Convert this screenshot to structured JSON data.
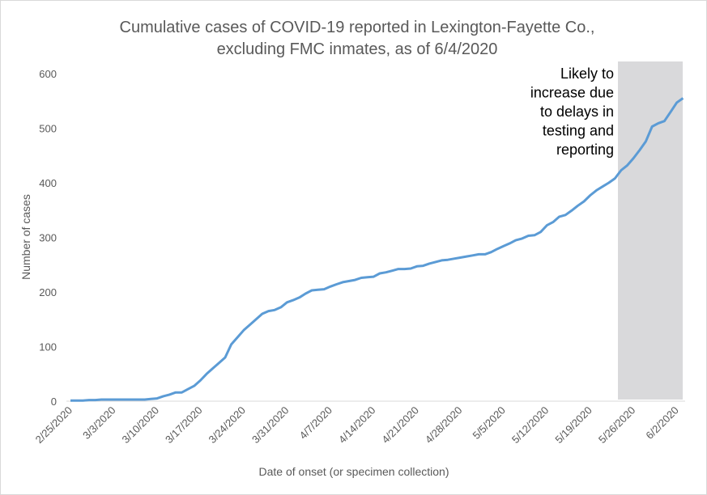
{
  "chart_data": {
    "type": "line",
    "title": [
      "Cumulative cases of COVID-19 reported in Lexington-Fayette Co.,",
      "excluding FMC inmates, as of 6/4/2020"
    ],
    "x_label": "Date of onset (or specimen collection)",
    "y_label": "Number of cases",
    "annotation": [
      "Likely to",
      "increase due",
      "to delays in",
      "testing and",
      "reporting"
    ],
    "color": "#5b9bd5",
    "categories": [
      "2/25/2020",
      null,
      null,
      null,
      null,
      null,
      null,
      "3/3/2020",
      null,
      null,
      null,
      null,
      null,
      null,
      "3/10/2020",
      null,
      null,
      null,
      null,
      null,
      null,
      "3/17/2020",
      null,
      null,
      null,
      null,
      null,
      null,
      "3/24/2020",
      null,
      null,
      null,
      null,
      null,
      null,
      "3/31/2020",
      null,
      null,
      null,
      null,
      null,
      null,
      "4/7/2020",
      null,
      null,
      null,
      null,
      null,
      null,
      "4/14/2020",
      null,
      null,
      null,
      null,
      null,
      null,
      "4/21/2020",
      null,
      null,
      null,
      null,
      null,
      null,
      "4/28/2020",
      null,
      null,
      null,
      null,
      null,
      null,
      "5/5/2020",
      null,
      null,
      null,
      null,
      null,
      null,
      "5/12/2020",
      null,
      null,
      null,
      null,
      null,
      null,
      "5/19/2020",
      null,
      null,
      null,
      null,
      null,
      null,
      "5/26/2020",
      null,
      null,
      null,
      null,
      null,
      null,
      "6/2/2020",
      null
    ],
    "values": [
      1,
      1,
      1,
      2,
      2,
      3,
      3,
      3,
      3,
      3,
      3,
      3,
      3,
      4,
      5,
      9,
      12,
      16,
      16,
      22,
      28,
      38,
      50,
      60,
      70,
      80,
      104,
      117,
      130,
      140,
      150,
      160,
      165,
      167,
      172,
      181,
      185,
      190,
      197,
      203,
      204,
      205,
      210,
      214,
      218,
      220,
      222,
      226,
      227,
      228,
      234,
      236,
      239,
      242,
      242,
      243,
      247,
      248,
      252,
      255,
      258,
      259,
      261,
      263,
      265,
      267,
      269,
      269,
      273,
      279,
      284,
      289,
      295,
      298,
      303,
      304,
      310,
      322,
      328,
      338,
      341,
      349,
      358,
      366,
      377,
      386,
      393,
      400,
      408,
      423,
      432,
      445,
      460,
      476,
      503,
      509,
      513,
      530,
      547,
      555
    ],
    "ylim": [
      0,
      600
    ],
    "yticks": [
      0,
      100,
      200,
      300,
      400,
      500,
      600
    ]
  }
}
